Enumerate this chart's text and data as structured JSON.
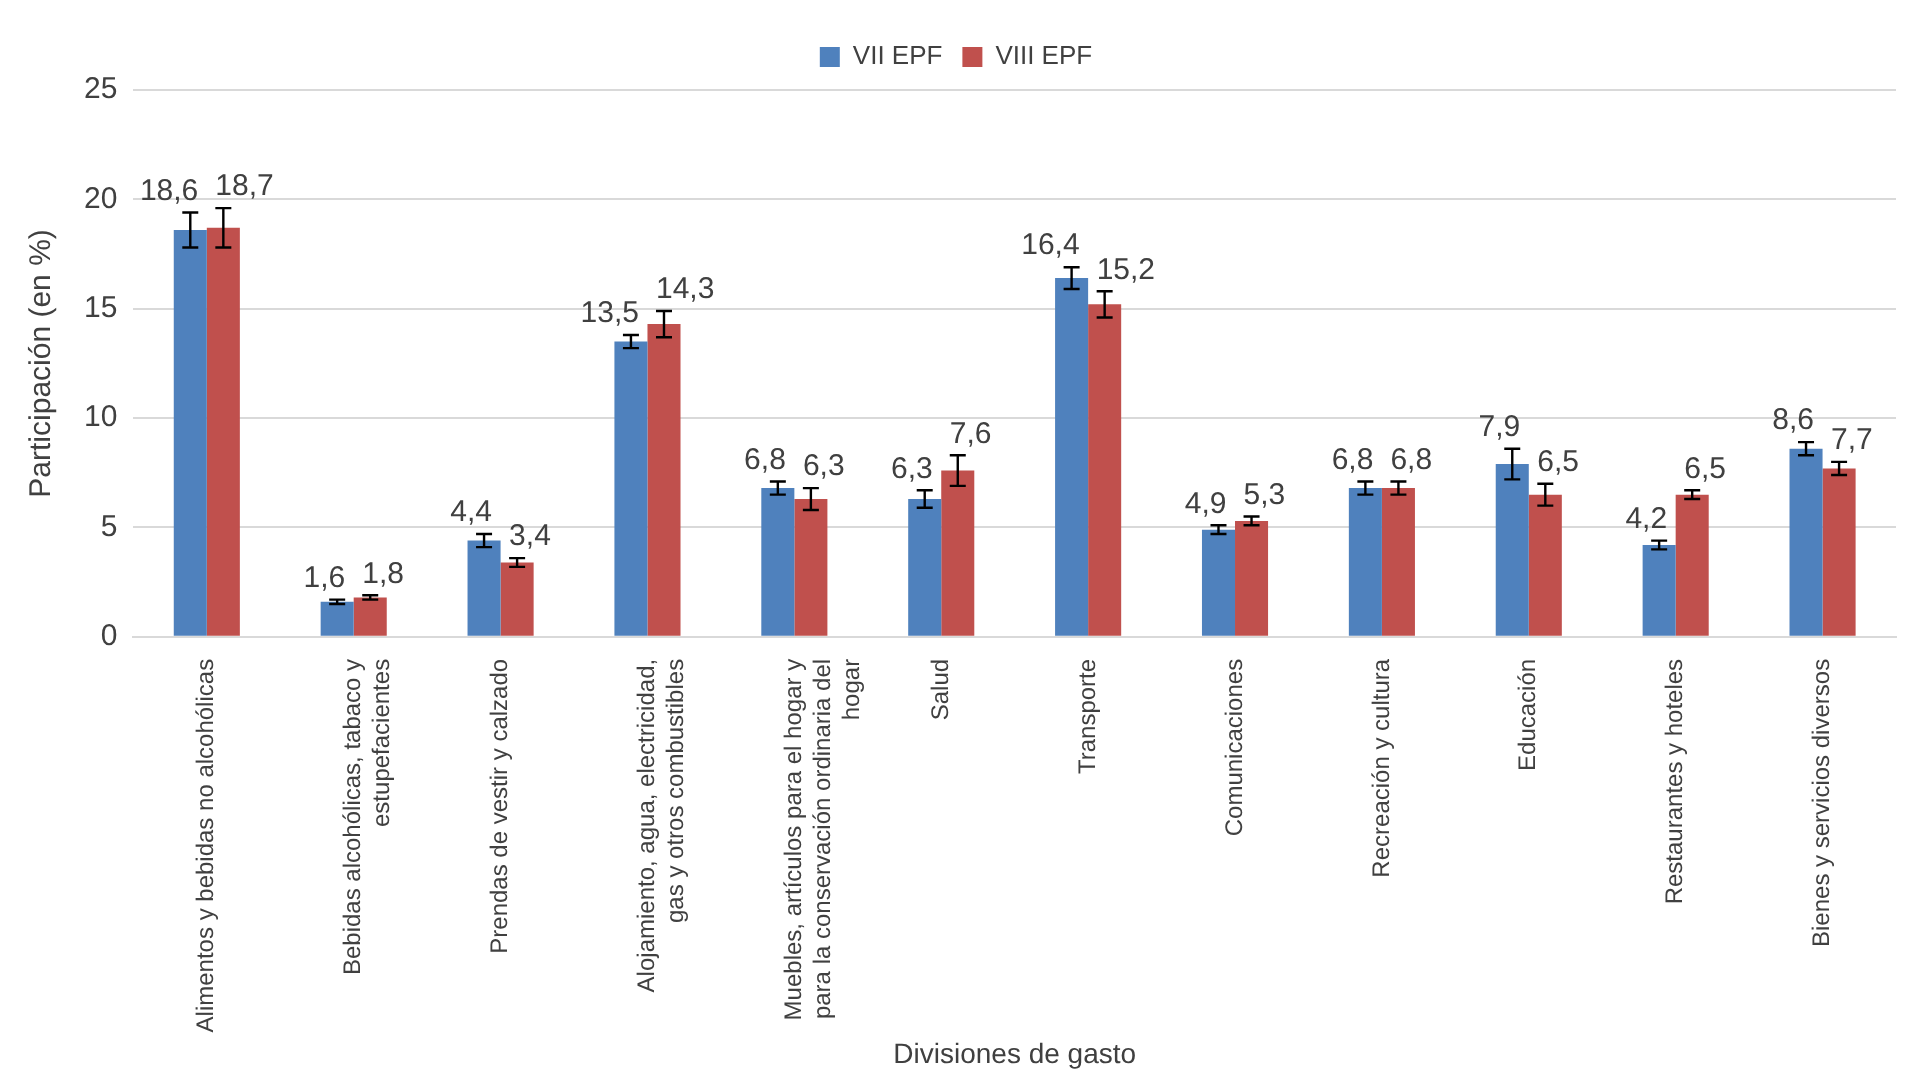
{
  "chart_data": {
    "type": "bar",
    "xlabel": "Divisiones de gasto",
    "ylabel": "Participación (en %)",
    "categories": [
      "Alimentos y bebidas no alcohólicas",
      "Bebidas alcohólicas, tabaco y estupefacientes",
      "Prendas de vestir y calzado",
      "Alojamiento, agua, electricidad, gas y otros combustibles",
      "Muebles, artículos para el hogar y para la conservación ordinaria del hogar",
      "Salud",
      "Transporte",
      "Comunicaciones",
      "Recreación y cultura",
      "Educación",
      "Restaurantes y hoteles",
      "Bienes y servicios diversos"
    ],
    "series": [
      {
        "name": "VII EPF",
        "color": "#4f81bd",
        "values": [
          18.6,
          1.6,
          4.4,
          13.5,
          6.8,
          6.3,
          16.4,
          4.9,
          6.8,
          7.9,
          4.2,
          8.6
        ],
        "errors": [
          0.8,
          0.1,
          0.3,
          0.3,
          0.3,
          0.4,
          0.5,
          0.2,
          0.3,
          0.7,
          0.2,
          0.3
        ],
        "value_labels": [
          "18,6",
          "1,6",
          "4,4",
          "13,5",
          "6,8",
          "6,3",
          "16,4",
          "4,9",
          "6,8",
          "7,9",
          "4,2",
          "8,6"
        ]
      },
      {
        "name": "VIII EPF",
        "color": "#c0504d",
        "values": [
          18.7,
          1.8,
          3.4,
          14.3,
          6.3,
          7.6,
          15.2,
          5.3,
          6.8,
          6.5,
          6.5,
          7.7
        ],
        "errors": [
          0.9,
          0.1,
          0.2,
          0.6,
          0.5,
          0.7,
          0.6,
          0.2,
          0.3,
          0.5,
          0.2,
          0.3
        ],
        "value_labels": [
          "18,7",
          "1,8",
          "3,4",
          "14,3",
          "6,3",
          "7,6",
          "15,2",
          "5,3",
          "6,8",
          "6,5",
          "6,5",
          "7,7"
        ]
      }
    ],
    "ylim": [
      0,
      25
    ],
    "yticks": [
      0,
      5,
      10,
      15,
      20,
      25
    ],
    "grid": "y",
    "legend": "top"
  }
}
